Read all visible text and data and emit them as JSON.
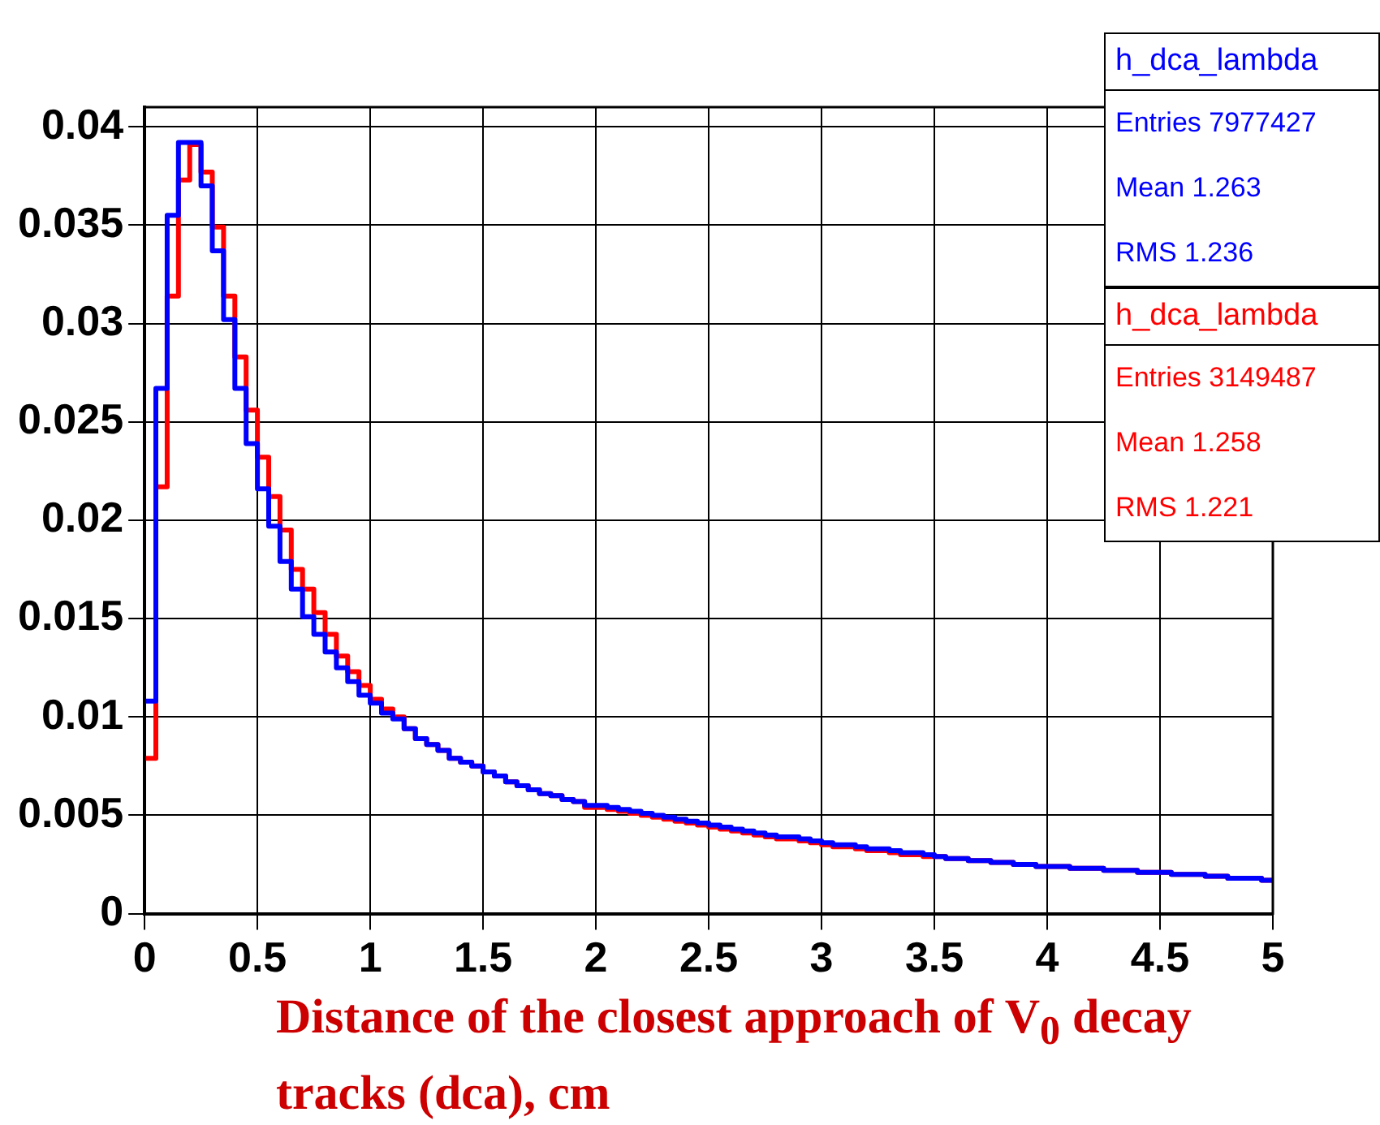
{
  "chart_data": {
    "type": "histogram",
    "xlabel": "Distance of the closest approach of V$_{0}$ decay tracks (dca), cm",
    "bins": [
      0,
      0.05,
      0.1,
      0.15,
      0.2,
      0.25,
      0.3,
      0.35,
      0.4,
      0.45,
      0.5,
      0.55,
      0.6,
      0.65,
      0.7,
      0.75,
      0.8,
      0.85,
      0.9,
      0.95,
      1,
      1.05,
      1.1,
      1.15,
      1.2,
      1.25,
      1.3,
      1.35,
      1.4,
      1.45,
      1.5,
      1.55,
      1.6,
      1.65,
      1.7,
      1.75,
      1.8,
      1.85,
      1.9,
      1.95,
      2,
      2.05,
      2.1,
      2.15,
      2.2,
      2.25,
      2.3,
      2.35,
      2.4,
      2.45,
      2.5,
      2.55,
      2.6,
      2.65,
      2.7,
      2.75,
      2.8,
      2.85,
      2.9,
      2.95,
      3,
      3.05,
      3.1,
      3.15,
      3.2,
      3.25,
      3.3,
      3.35,
      3.4,
      3.45,
      3.5,
      3.55,
      3.6,
      3.65,
      3.7,
      3.75,
      3.8,
      3.85,
      3.9,
      3.95,
      4,
      4.05,
      4.1,
      4.15,
      4.2,
      4.25,
      4.3,
      4.35,
      4.4,
      4.45,
      4.5,
      4.55,
      4.6,
      4.65,
      4.7,
      4.75,
      4.8,
      4.85,
      4.9,
      4.95,
      5
    ],
    "series": [
      {
        "name": "h_dca_lambda",
        "color": "#0000ff",
        "values": [
          0.0108,
          0.0267,
          0.0355,
          0.0392,
          0.0392,
          0.037,
          0.0337,
          0.0302,
          0.0267,
          0.0239,
          0.0216,
          0.0197,
          0.0179,
          0.0165,
          0.0151,
          0.0142,
          0.0133,
          0.0125,
          0.0118,
          0.0111,
          0.0107,
          0.0102,
          0.0099,
          0.0094,
          0.0089,
          0.0086,
          0.0083,
          0.0079,
          0.0077,
          0.0075,
          0.0072,
          0.007,
          0.0067,
          0.0065,
          0.0063,
          0.0061,
          0.006,
          0.0058,
          0.0057,
          0.0055,
          0.0055,
          0.0054,
          0.0053,
          0.0052,
          0.0051,
          0.005,
          0.0049,
          0.0048,
          0.0047,
          0.0046,
          0.0045,
          0.0044,
          0.0043,
          0.0042,
          0.0041,
          0.004,
          0.0039,
          0.0039,
          0.0038,
          0.0037,
          0.0036,
          0.0035,
          0.0035,
          0.0034,
          0.0033,
          0.0033,
          0.0032,
          0.0031,
          0.0031,
          0.003,
          0.0029,
          0.0028,
          0.0028,
          0.0027,
          0.0027,
          0.0026,
          0.0026,
          0.0025,
          0.0025,
          0.0024,
          0.0024,
          0.0024,
          0.0023,
          0.0023,
          0.0023,
          0.0022,
          0.0022,
          0.0022,
          0.0021,
          0.0021,
          0.0021,
          0.002,
          0.002,
          0.002,
          0.0019,
          0.0019,
          0.0018,
          0.0018,
          0.0018,
          0.0017
        ]
      },
      {
        "name": "h_dca_lambda",
        "color": "#ff0000",
        "values": [
          0.0079,
          0.0217,
          0.0314,
          0.0373,
          0.0391,
          0.0377,
          0.0349,
          0.0314,
          0.0283,
          0.0256,
          0.0232,
          0.0212,
          0.0195,
          0.0175,
          0.0165,
          0.0153,
          0.0142,
          0.0131,
          0.0123,
          0.0116,
          0.0109,
          0.0104,
          0.01,
          0.0094,
          0.0089,
          0.0086,
          0.0083,
          0.0079,
          0.0077,
          0.0075,
          0.0072,
          0.007,
          0.0067,
          0.0065,
          0.0063,
          0.0061,
          0.006,
          0.0058,
          0.0057,
          0.0054,
          0.0054,
          0.0053,
          0.0052,
          0.0051,
          0.005,
          0.0049,
          0.0048,
          0.0047,
          0.0046,
          0.0045,
          0.0044,
          0.0043,
          0.0042,
          0.0041,
          0.004,
          0.0039,
          0.0038,
          0.0038,
          0.0037,
          0.0036,
          0.0035,
          0.0034,
          0.0034,
          0.0033,
          0.0032,
          0.0032,
          0.0031,
          0.003,
          0.003,
          0.0029,
          0.0029,
          0.0028,
          0.0028,
          0.0027,
          0.0027,
          0.0026,
          0.0026,
          0.0025,
          0.0025,
          0.0024,
          0.0024,
          0.0024,
          0.0023,
          0.0023,
          0.0023,
          0.0022,
          0.0022,
          0.0022,
          0.0021,
          0.0021,
          0.0021,
          0.002,
          0.002,
          0.002,
          0.0019,
          0.0019,
          0.0018,
          0.0018,
          0.0018,
          0.0017
        ]
      }
    ],
    "annotations": [
      "Entries 7977427",
      "Mean 1.263",
      "RMS 1.236",
      "Entries 3149487",
      "Mean 1.258",
      "RMS 1.221"
    ],
    "xlim": [
      0,
      5
    ],
    "xticks": [
      0,
      0.5,
      1,
      1.5,
      2,
      2.5,
      3,
      3.5,
      4,
      4.5,
      5
    ],
    "ylim": [
      0,
      0.041
    ],
    "yticks": [
      0,
      0.005,
      0.01,
      0.015,
      0.02,
      0.025,
      0.03,
      0.035,
      0.04
    ],
    "grid": true,
    "legend": "top right",
    "line_style": "solid"
  }
}
